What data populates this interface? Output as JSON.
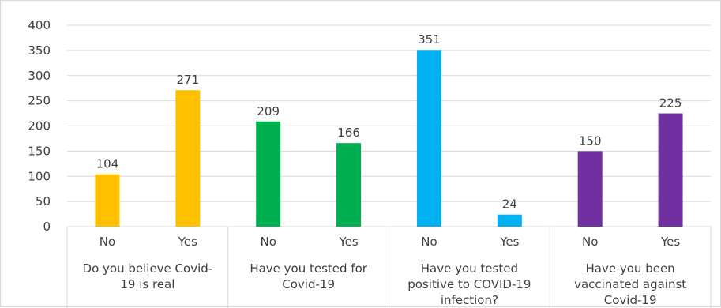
{
  "chart_data": {
    "type": "bar",
    "title": "",
    "xlabel": "",
    "ylabel": "",
    "ylim": [
      0,
      400
    ],
    "yticks": [
      0,
      50,
      100,
      150,
      200,
      250,
      300,
      350,
      400
    ],
    "grid": true,
    "legend": "none",
    "groups": [
      {
        "label_lines": [
          "Do you believe Covid-",
          "19 is real"
        ],
        "color": "#FFC000",
        "bars": [
          {
            "category": "No",
            "value": 104
          },
          {
            "category": "Yes",
            "value": 271
          }
        ]
      },
      {
        "label_lines": [
          "Have you tested for",
          "Covid-19"
        ],
        "color": "#00B050",
        "bars": [
          {
            "category": "No",
            "value": 209
          },
          {
            "category": "Yes",
            "value": 166
          }
        ]
      },
      {
        "label_lines": [
          "Have you tested",
          "positive to COVID-19",
          "infection?"
        ],
        "color": "#00B0F0",
        "bars": [
          {
            "category": "No",
            "value": 351
          },
          {
            "category": "Yes",
            "value": 24
          }
        ]
      },
      {
        "label_lines": [
          "Have you been",
          "vaccinated against",
          "Covid-19"
        ],
        "color": "#7030A0",
        "bars": [
          {
            "category": "No",
            "value": 150
          },
          {
            "category": "Yes",
            "value": 225
          }
        ]
      }
    ]
  },
  "colors": {
    "grid": "#d9d9d9",
    "axis_text": "#404040",
    "frame": "#d9d9d9"
  }
}
